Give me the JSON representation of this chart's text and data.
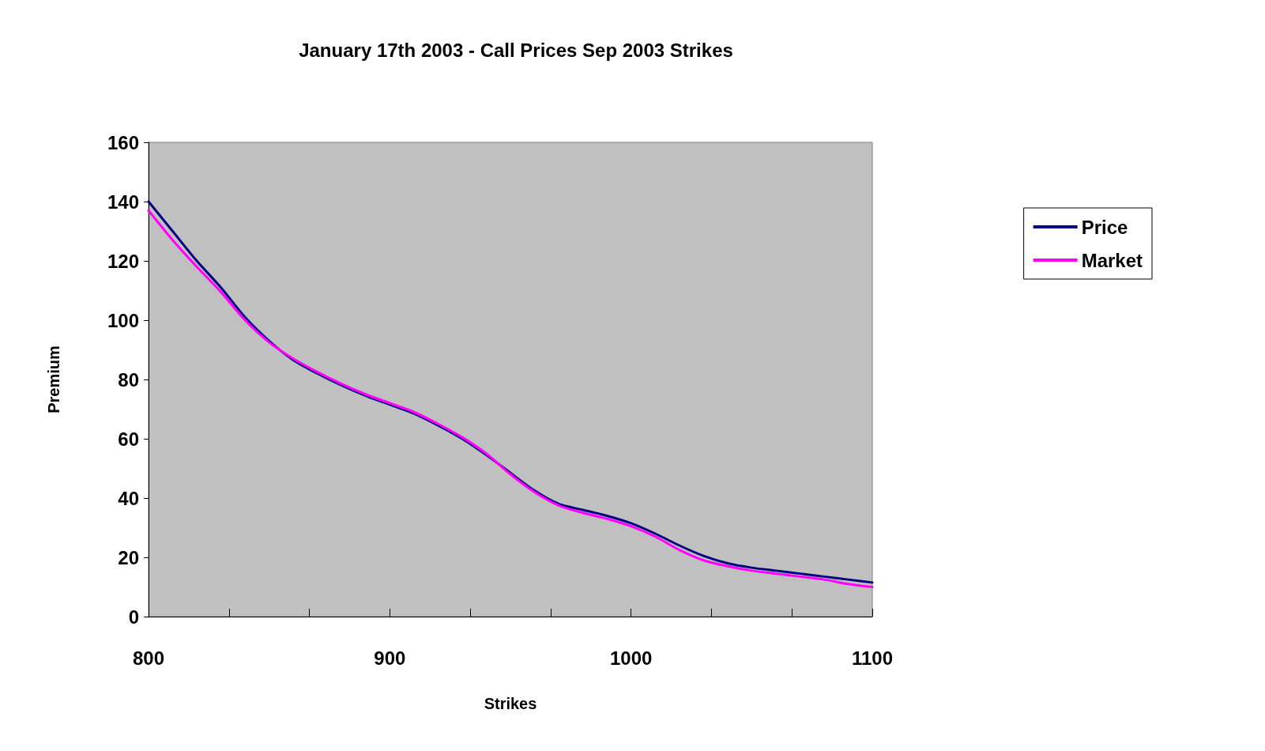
{
  "chart_data": {
    "type": "line",
    "title": "January 17th 2003 - Call Prices Sep 2003 Strikes",
    "xlabel": "Strikes",
    "ylabel": "Premium",
    "x": [
      800,
      810,
      820,
      830,
      840,
      850,
      860,
      870,
      880,
      890,
      900,
      910,
      920,
      930,
      940,
      950,
      960,
      970,
      980,
      990,
      1000,
      1010,
      1020,
      1030,
      1040,
      1050,
      1060,
      1070,
      1080,
      1090,
      1100
    ],
    "series": [
      {
        "name": "Price",
        "color": "#000080",
        "values": [
          140,
          130,
          120,
          111,
          101,
          93,
          86.5,
          82,
          78,
          74.5,
          71.5,
          68.5,
          64.5,
          60,
          54.5,
          48.5,
          42.5,
          38,
          36,
          34,
          31.5,
          28,
          24,
          20.5,
          18,
          16.5,
          15.5,
          14.5,
          13.5,
          12.5,
          11.5
        ]
      },
      {
        "name": "Market",
        "color": "#ff00ff",
        "values": [
          137,
          127,
          118,
          109.5,
          100,
          92.5,
          87,
          82.5,
          78.5,
          75,
          72,
          69,
          65,
          60.5,
          55,
          48,
          42,
          37.5,
          35,
          33,
          30.5,
          27,
          22.5,
          19,
          17,
          15.5,
          14.5,
          13.5,
          12.5,
          11,
          10
        ]
      }
    ],
    "xlim": [
      800,
      1100
    ],
    "xticks": [
      800,
      {
        "value": 833.33,
        "label": null
      },
      {
        "value": 866.67,
        "label": null
      },
      900,
      {
        "value": 933.33,
        "label": null
      },
      {
        "value": 966.67,
        "label": null
      },
      1000,
      {
        "value": 1033.33,
        "label": null
      },
      {
        "value": 1066.67,
        "label": null
      },
      1100
    ],
    "ylim": [
      0,
      160
    ],
    "yticks": [
      0,
      20,
      40,
      60,
      80,
      100,
      120,
      140,
      160
    ],
    "grid": false,
    "legend": "right",
    "marker": "none",
    "line_style": "solid"
  }
}
